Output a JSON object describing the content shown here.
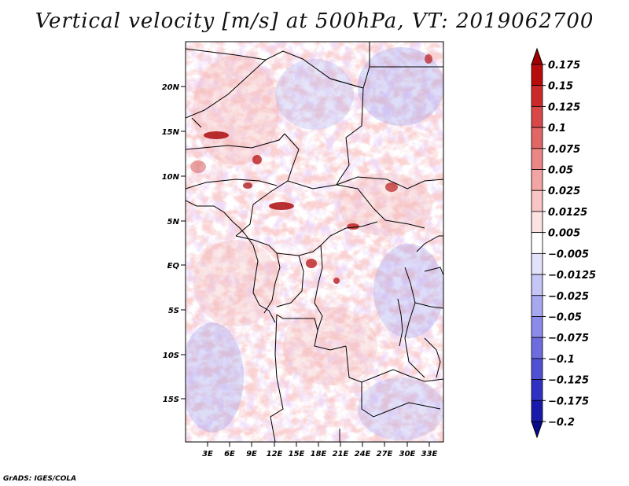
{
  "title": "Vertical velocity [m/s] at 500hPa, VT: 2019062700",
  "credit": "GrADS: IGES/COLA",
  "map": {
    "lat_ticks": [
      "20N",
      "15N",
      "10N",
      "5N",
      "EQ",
      "5S",
      "10S",
      "15S"
    ],
    "lon_ticks": [
      "3E",
      "6E",
      "9E",
      "12E",
      "15E",
      "18E",
      "21E",
      "24E",
      "27E",
      "30E",
      "33E"
    ],
    "lon_range": [
      0,
      35
    ],
    "lat_range": [
      -20,
      24
    ],
    "field_colors": {
      "strong_ascent": "#8b0000",
      "weak_ascent": "#f2a59e",
      "neutral": "#ffffff",
      "weak_descent": "#b4b4f6",
      "strong_descent": "#3333bb"
    }
  },
  "colorbar": {
    "levels": [
      "0.175",
      "0.15",
      "0.125",
      "0.1",
      "0.075",
      "0.05",
      "0.025",
      "0.0125",
      "0.005",
      "−0.005",
      "−0.0125",
      "−0.025",
      "−0.05",
      "−0.075",
      "−0.1",
      "−0.125",
      "−0.175",
      "−0.2"
    ],
    "colors": [
      "#a10000",
      "#b80c0c",
      "#cc2a2a",
      "#d94848",
      "#e36666",
      "#ec8585",
      "#f3a5a5",
      "#f8c4c4",
      "#fde2e2",
      "#ffffff",
      "#e2e2fb",
      "#c6c6f6",
      "#a8a8f1",
      "#8b8bea",
      "#6d6de0",
      "#5050d4",
      "#3030c3",
      "#1919ab",
      "#0a0a8c"
    ]
  }
}
